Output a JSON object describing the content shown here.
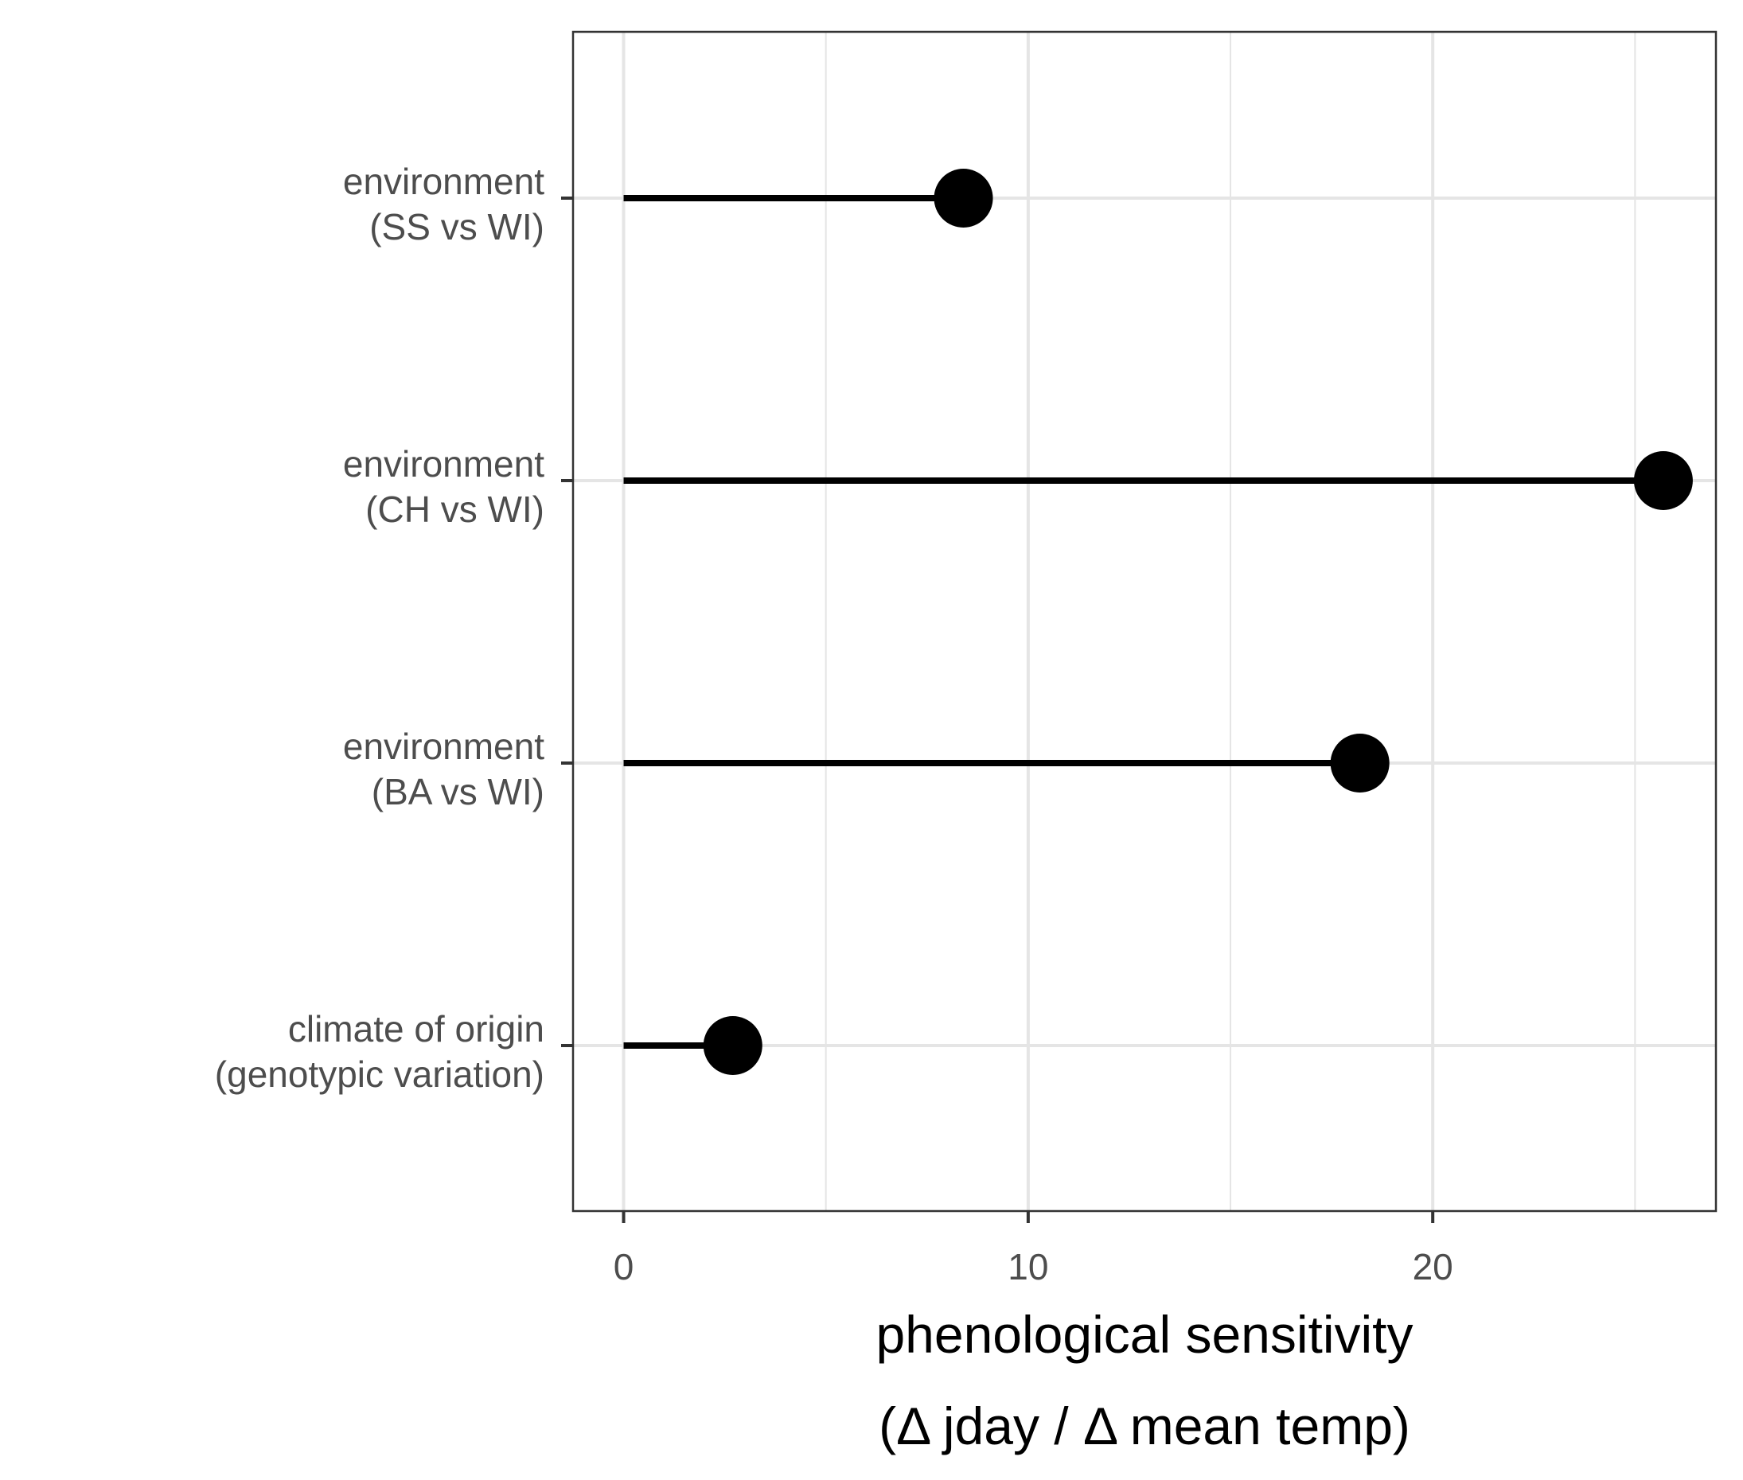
{
  "chart_data": {
    "type": "lollipop",
    "orientation": "horizontal",
    "categories": [
      [
        "environment",
        "(SS vs WI)"
      ],
      [
        "environment",
        "(CH vs WI)"
      ],
      [
        "environment",
        "(BA vs WI)"
      ],
      [
        "climate of origin",
        "(genotypic variation)"
      ]
    ],
    "values": [
      8.4,
      25.7,
      18.2,
      2.7
    ],
    "xlabel": [
      "phenological sensitivity",
      "(Δ jday / Δ mean temp)"
    ],
    "ylabel": "",
    "xlim": [
      -1.25,
      27
    ],
    "xticks": [
      0,
      10,
      20
    ],
    "xtick_labels": [
      "0",
      "10",
      "20"
    ],
    "minor_gridlines": [
      5,
      15,
      25
    ],
    "grid": true,
    "legend": "none",
    "colors": {
      "mark": "#000000",
      "grid": "#e5e5e5",
      "panel_border": "#333333",
      "tick_text": "#4d4d4d"
    }
  }
}
